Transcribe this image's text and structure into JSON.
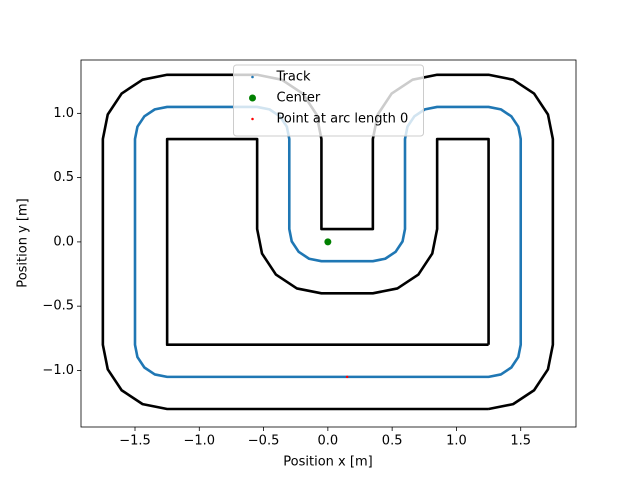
{
  "chart_data": {
    "type": "line",
    "xlabel": "Position x [m]",
    "ylabel": "Position y [m]",
    "xlim": [
      -1.92,
      1.93
    ],
    "ylim": [
      -1.44,
      1.415
    ],
    "xticks": [
      {
        "value": -1.5,
        "label": "−1.5"
      },
      {
        "value": -1,
        "label": "−1.0"
      },
      {
        "value": -0.5,
        "label": "−0.5"
      },
      {
        "value": 0,
        "label": "0.0"
      },
      0.5,
      {
        "value": 1,
        "label": "1.0"
      },
      1.5
    ],
    "yticks": [
      {
        "value": -1,
        "label": "−1.0"
      },
      {
        "value": -0.5,
        "label": "−0.5"
      },
      {
        "value": 0,
        "label": "0.0"
      },
      0.5,
      {
        "value": 1,
        "label": "1.0"
      }
    ],
    "legend": "upper center",
    "series": [
      {
        "color": "#000000",
        "style": "line",
        "x": [
          1.25,
          1.441,
          1.604,
          1.712,
          1.75,
          1.75,
          1.712,
          1.604,
          1.441,
          1.25,
          0.85,
          0.659,
          0.496,
          0.388,
          0.35,
          0.35,
          -0.05,
          -0.05,
          -0.088,
          -0.196,
          -0.359,
          -0.55,
          -1.25,
          -1.441,
          -1.604,
          -1.712,
          -1.75,
          -1.75,
          -1.712,
          -1.604,
          -1.441,
          -1.25,
          1.25
        ],
        "y": [
          -1.3,
          -1.262,
          -1.154,
          -0.991,
          -0.8,
          0.8,
          0.991,
          1.154,
          1.262,
          1.3,
          1.3,
          1.262,
          1.154,
          0.991,
          0.8,
          0.1,
          0.1,
          0.8,
          0.991,
          1.154,
          1.262,
          1.3,
          1.3,
          1.262,
          1.154,
          0.991,
          0.8,
          -0.8,
          -0.991,
          -1.154,
          -1.262,
          -1.3,
          -1.3
        ]
      },
      {
        "color": "#000000",
        "style": "line",
        "x": [
          1.25,
          1.25,
          0.85,
          0.85,
          0.812,
          0.704,
          0.541,
          0.35,
          -0.05,
          -0.241,
          -0.404,
          -0.512,
          -0.55,
          -0.55,
          -1.25,
          -1.25,
          1.25
        ],
        "y": [
          -0.8,
          0.8,
          0.8,
          0.1,
          -0.091,
          -0.254,
          -0.362,
          -0.4,
          -0.4,
          -0.362,
          -0.254,
          -0.091,
          0.1,
          0.8,
          0.8,
          -0.8,
          -0.8
        ]
      },
      {
        "name": "Track",
        "color": "#1f77b4",
        "style": "line",
        "x": [
          0.15,
          1.25,
          1.346,
          1.427,
          1.481,
          1.5,
          1.5,
          1.481,
          1.427,
          1.346,
          1.25,
          0.85,
          0.754,
          0.673,
          0.619,
          0.6,
          0.6,
          0.581,
          0.527,
          0.446,
          0.35,
          -0.05,
          -0.146,
          -0.227,
          -0.281,
          -0.3,
          -0.3,
          -0.319,
          -0.373,
          -0.454,
          -0.55,
          -1.25,
          -1.346,
          -1.427,
          -1.481,
          -1.5,
          -1.5,
          -1.481,
          -1.427,
          -1.346,
          -1.25,
          0.15
        ],
        "y": [
          -1.05,
          -1.05,
          -1.031,
          -0.977,
          -0.896,
          -0.8,
          0.8,
          0.896,
          0.977,
          1.031,
          1.05,
          1.05,
          1.031,
          0.977,
          0.896,
          0.8,
          0.1,
          0.004,
          -0.077,
          -0.131,
          -0.15,
          -0.15,
          -0.131,
          -0.077,
          0.004,
          0.1,
          0.8,
          0.896,
          0.977,
          1.031,
          1.05,
          1.05,
          1.031,
          0.977,
          0.896,
          0.8,
          -0.8,
          -0.896,
          -0.977,
          -1.031,
          -1.05,
          -1.05
        ]
      },
      {
        "name": "Center",
        "color": "#008000",
        "style": "marker",
        "size": 6,
        "x": [
          0
        ],
        "y": [
          0
        ]
      },
      {
        "name": "Point at arc length 0",
        "color": "#ff0000",
        "style": "marker",
        "size": 1.5,
        "x": [
          0.15
        ],
        "y": [
          -1.05
        ]
      }
    ]
  }
}
